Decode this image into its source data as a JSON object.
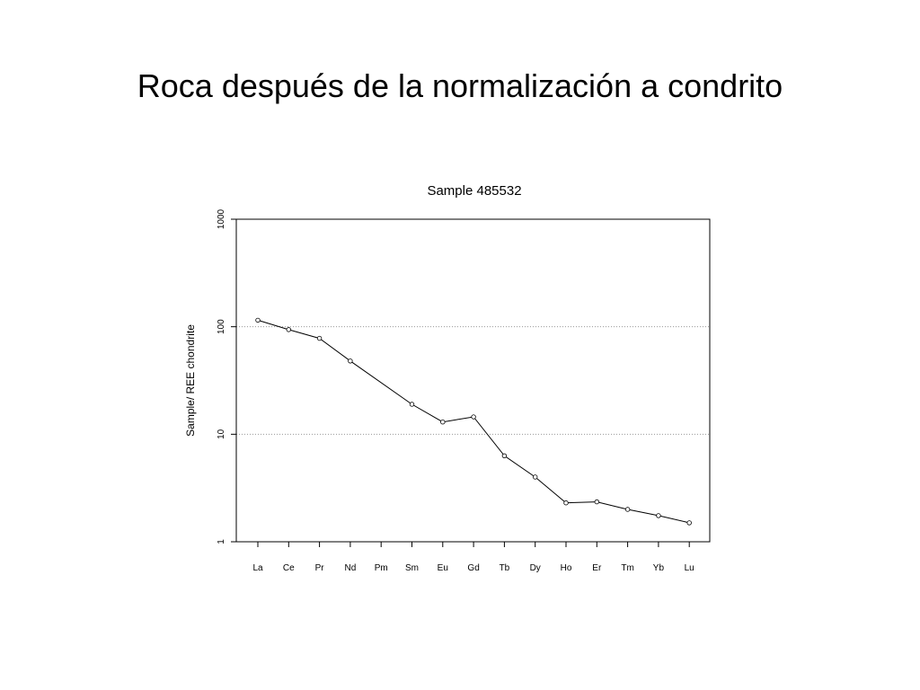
{
  "slide": {
    "title": "Roca después de la normalización a condrito"
  },
  "chart_data": {
    "type": "line",
    "title": "Sample  485532",
    "xlabel": "",
    "ylabel": "Sample/ REE chondrite",
    "yscale": "log",
    "ylim": [
      1,
      1000
    ],
    "yticks": [
      1,
      10,
      100,
      1000
    ],
    "ytick_labels": [
      "1",
      "10",
      "100",
      "1000"
    ],
    "grid": {
      "horizontal_dotted": [
        10,
        100
      ]
    },
    "categories": [
      "La",
      "Ce",
      "Pr",
      "Nd",
      "Pm",
      "Sm",
      "Eu",
      "Gd",
      "Tb",
      "Dy",
      "Ho",
      "Er",
      "Tm",
      "Yb",
      "Lu"
    ],
    "series": [
      {
        "values": [
          115,
          94,
          78,
          48,
          null,
          19,
          13,
          14.5,
          6.3,
          4.0,
          2.3,
          2.35,
          2.0,
          1.75,
          1.5
        ]
      }
    ],
    "colors": {
      "line": "#000000",
      "grid": "#9a9a9a"
    }
  }
}
